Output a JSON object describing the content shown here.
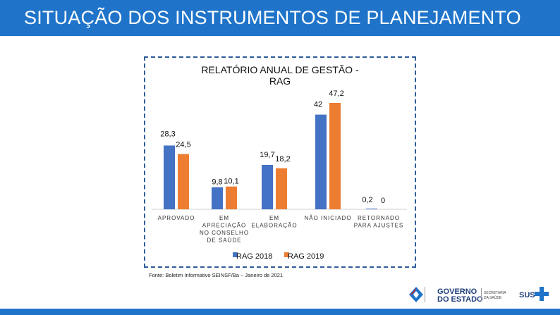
{
  "header": {
    "title": "SITUAÇÃO DOS INSTRUMENTOS DE PLANEJAMENTO"
  },
  "chart_data": {
    "type": "bar",
    "title": "RELATÓRIO ANUAL DE GESTÃO - RAG",
    "title_lines": [
      "RELATÓRIO ANUAL DE GESTÃO -",
      "RAG"
    ],
    "categories": [
      "APROVADO",
      "EM APRECIAÇÃO NO CONSELHO DE SAÚDE",
      "EM ELABORAÇÃO",
      "NÃO INICIADO",
      "RETORNADO PARA AJUSTES"
    ],
    "category_lines": [
      [
        "APROVADO"
      ],
      [
        "EM",
        "APRECIAÇÃO",
        "NO CONSELHO",
        "DE SAÚDE"
      ],
      [
        "EM",
        "ELABORAÇÃO"
      ],
      [
        "NÃO INICIADO"
      ],
      [
        "RETORNADO",
        "PARA AJUSTES"
      ]
    ],
    "series": [
      {
        "name": "RAG 2018",
        "color": "#4472c4",
        "values": [
          28.3,
          9.8,
          19.7,
          42,
          0.2
        ],
        "labels": [
          "28,3",
          "9,8",
          "19,7",
          "42",
          "0,2"
        ]
      },
      {
        "name": "RAG 2019",
        "color": "#ed7d31",
        "values": [
          24.5,
          10.1,
          18.2,
          47.2,
          0
        ],
        "labels": [
          "24,5",
          "10,1",
          "18,2",
          "47,2",
          "0"
        ]
      }
    ],
    "ylim": [
      0,
      50
    ],
    "xlabel": "",
    "ylabel": "",
    "grid": false,
    "legend": "bottom"
  },
  "source": "Fonte: Boletim Informativo SEINSF/Ba – Janeiro de 2021",
  "footer": {
    "gov_line1": "GOVERNO",
    "gov_line2": "DO ESTADO",
    "secretaria_line1": "SECRETARIA",
    "secretaria_line2": "DA SAÚDE",
    "sus": "SUS"
  }
}
